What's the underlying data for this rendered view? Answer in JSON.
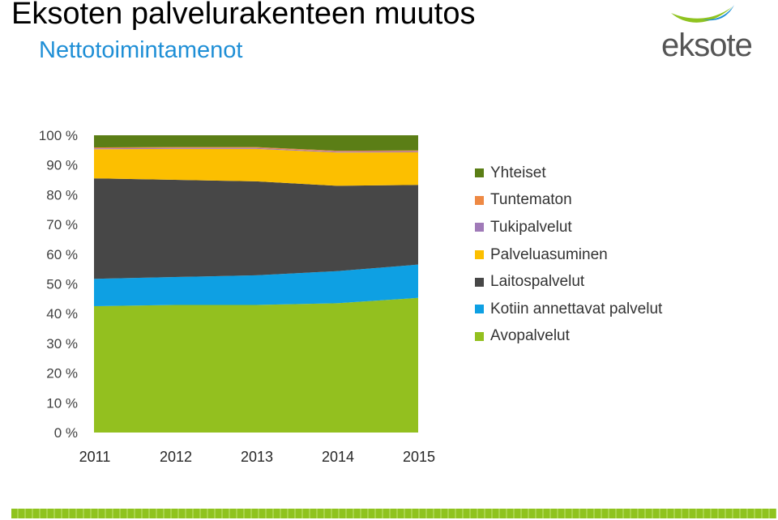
{
  "header": {
    "title": "Eksoten palvelurakenteen muutos",
    "subtitle": "Nettotoimintamenot"
  },
  "logo": {
    "text": "eksote",
    "colors": {
      "arc_green": "#8fc31f",
      "arc_blue": "#1f8fd6"
    }
  },
  "chart_data": {
    "type": "area",
    "stacked": true,
    "normalized": true,
    "x": [
      "2011",
      "2012",
      "2013",
      "2014",
      "2015"
    ],
    "ylim": [
      0,
      100
    ],
    "y_ticks": [
      "0 %",
      "10 %",
      "20 %",
      "30 %",
      "40 %",
      "50 %",
      "60 %",
      "70 %",
      "80 %",
      "90 %",
      "100 %"
    ],
    "legend_position": "right",
    "series": [
      {
        "name": "Avopalvelut",
        "color": "#93c01f",
        "values": [
          42.5,
          42.9,
          42.9,
          43.5,
          45.3
        ]
      },
      {
        "name": "Kotiin annettavat palvelut",
        "color": "#0ea0e3",
        "values": [
          9.2,
          9.4,
          10.0,
          10.8,
          11.2
        ]
      },
      {
        "name": "Laitospalvelut",
        "color": "#474747",
        "values": [
          33.8,
          32.7,
          31.6,
          28.7,
          26.8
        ]
      },
      {
        "name": "Palveluasuminen",
        "color": "#fcbf00",
        "values": [
          9.8,
          10.4,
          10.9,
          11.2,
          11.0
        ]
      },
      {
        "name": "Tukipalvelut",
        "color": "#a07ab8",
        "values": [
          0.3,
          0.3,
          0.3,
          0.3,
          0.3
        ]
      },
      {
        "name": "Tuntematon",
        "color": "#ee8944",
        "values": [
          0.3,
          0.3,
          0.3,
          0.3,
          0.3
        ]
      },
      {
        "name": "Yhteiset",
        "color": "#5b7e16",
        "values": [
          4.1,
          4.0,
          4.0,
          5.2,
          5.1
        ]
      }
    ],
    "legend_order": [
      "Yhteiset",
      "Tuntematon",
      "Tukipalvelut",
      "Palveluasuminen",
      "Laitospalvelut",
      "Kotiin annettavat palvelut",
      "Avopalvelut"
    ]
  },
  "footer": {
    "bar_color": "#8fc31f"
  }
}
